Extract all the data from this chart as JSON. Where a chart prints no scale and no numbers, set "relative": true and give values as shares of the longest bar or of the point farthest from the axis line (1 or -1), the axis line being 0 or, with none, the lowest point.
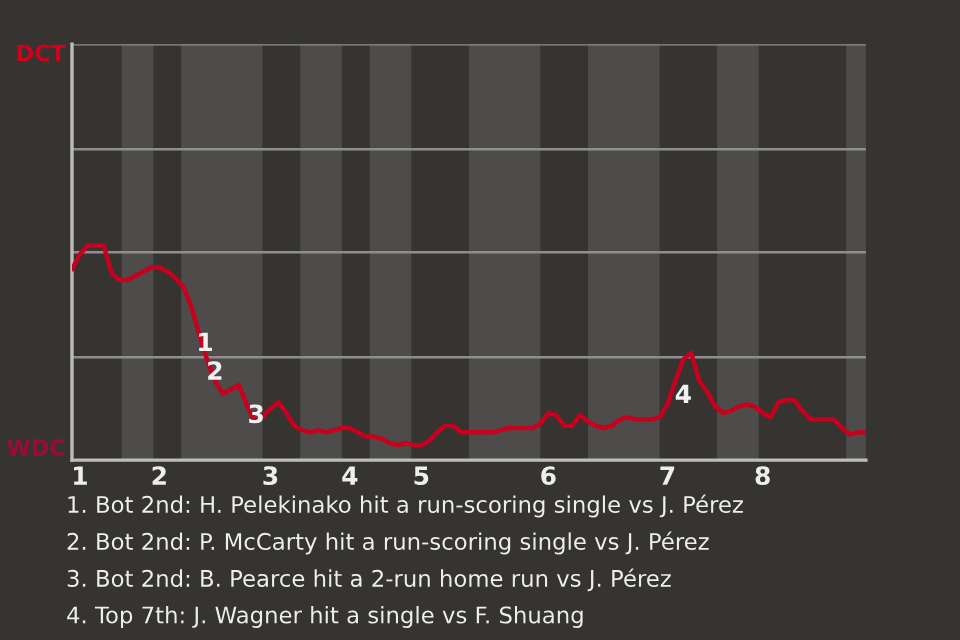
{
  "chart_data": {
    "type": "line",
    "relative": true,
    "categories": [
      null,
      "1",
      null,
      null,
      null,
      null,
      null,
      null,
      null,
      null,
      null,
      "2",
      null,
      null,
      null,
      null,
      null,
      null,
      null,
      null,
      null,
      null,
      null,
      null,
      null,
      "3",
      null,
      null,
      null,
      null,
      null,
      null,
      null,
      null,
      null,
      "4",
      null,
      null,
      null,
      null,
      null,
      null,
      null,
      null,
      "5",
      null,
      null,
      null,
      null,
      null,
      null,
      null,
      null,
      null,
      null,
      null,
      null,
      null,
      null,
      null,
      "6",
      null,
      null,
      null,
      null,
      null,
      null,
      null,
      null,
      null,
      null,
      null,
      null,
      null,
      null,
      "7",
      null,
      null,
      null,
      null,
      null,
      null,
      null,
      null,
      null,
      null,
      null,
      "8",
      null,
      null,
      null,
      null,
      null,
      null,
      null,
      null,
      null,
      null,
      null,
      null,
      null
    ],
    "series": [
      {
        "color": "#c8001e",
        "values": [
          0.89,
          0.96,
          1,
          1,
          1,
          0.87,
          0.84,
          0.84,
          0.86,
          0.88,
          0.9,
          0.9,
          0.88,
          0.85,
          0.81,
          0.72,
          0.59,
          0.47,
          0.37,
          0.31,
          0.33,
          0.35,
          0.26,
          0.18,
          0.2,
          0.24,
          0.27,
          0.22,
          0.16,
          0.14,
          0.13,
          0.14,
          0.13,
          0.14,
          0.15,
          0.15,
          0.13,
          0.11,
          0.11,
          0.1,
          0.08,
          0.07,
          0.08,
          0.07,
          0.07,
          0.09,
          0.13,
          0.16,
          0.16,
          0.13,
          0.13,
          0.13,
          0.13,
          0.13,
          0.14,
          0.15,
          0.15,
          0.15,
          0.15,
          0.17,
          0.22,
          0.21,
          0.16,
          0.16,
          0.21,
          0.18,
          0.16,
          0.15,
          0.16,
          0.19,
          0.2,
          0.19,
          0.19,
          0.19,
          0.2,
          0.26,
          0.37,
          0.47,
          0.5,
          0.37,
          0.32,
          0.25,
          0.22,
          0.23,
          0.25,
          0.26,
          0.25,
          0.22,
          0.2,
          0.27,
          0.28,
          0.28,
          0.23,
          0.19,
          0.19,
          0.19,
          0.19,
          0.15,
          0.12,
          0.13,
          0.13
        ]
      }
    ],
    "ref_lines": [
      {
        "axis": "y",
        "value": 0.48,
        "color": "#8e8e8e"
      },
      {
        "axis": "y",
        "value": 0.97,
        "color": "#8e8e8e"
      },
      {
        "axis": "y",
        "value": 1.45,
        "color": "#8e8e8e"
      },
      {
        "axis": "y",
        "value": 1.94,
        "color": "#8e8e8e"
      }
    ],
    "annotations": [
      "1",
      "2",
      "3",
      "4",
      "DCT",
      "WDC",
      "1. Bot 2nd: H. Pelekinako hit a run-scoring single vs J. Pérez",
      "2. Bot 2nd: P. McCarty hit a run-scoring single vs J. Pérez",
      "3. Bot 2nd: B. Pearce hit a 2-run home run vs J. Pérez",
      "4. Top 7th: J. Wagner hit a single vs F. Shuang"
    ]
  }
}
